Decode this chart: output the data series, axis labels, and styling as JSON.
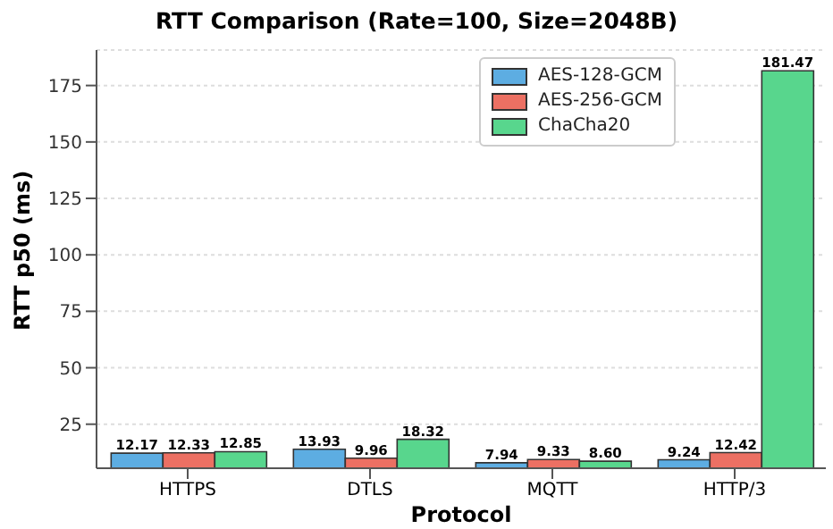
{
  "chart_data": {
    "type": "bar",
    "title": "RTT Comparison (Rate=100, Size=2048B)",
    "xlabel": "Protocol",
    "ylabel": "RTT p50 (ms)",
    "categories": [
      "HTTPS",
      "DTLS",
      "MQTT",
      "HTTP/3"
    ],
    "series": [
      {
        "name": "AES-128-GCM",
        "color": "#5dade2",
        "values": [
          12.17,
          13.93,
          7.94,
          9.24
        ],
        "value_labels": [
          "12.17",
          "13.93",
          "7.94",
          "9.24"
        ]
      },
      {
        "name": "AES-256-GCM",
        "color": "#ec7063",
        "values": [
          12.33,
          9.96,
          9.33,
          12.42
        ],
        "value_labels": [
          "12.33",
          "9.96",
          "9.33",
          "12.42"
        ]
      },
      {
        "name": "ChaCha20",
        "color": "#58d68d",
        "values": [
          12.85,
          18.32,
          8.6,
          181.47
        ],
        "value_labels": [
          "12.85",
          "18.32",
          "8.60",
          "181.47"
        ]
      }
    ],
    "ylim": [
      5.5,
      190.7
    ],
    "yticks": [
      25,
      50,
      75,
      100,
      125,
      150,
      175
    ],
    "grid": "y",
    "legend": "top right"
  }
}
